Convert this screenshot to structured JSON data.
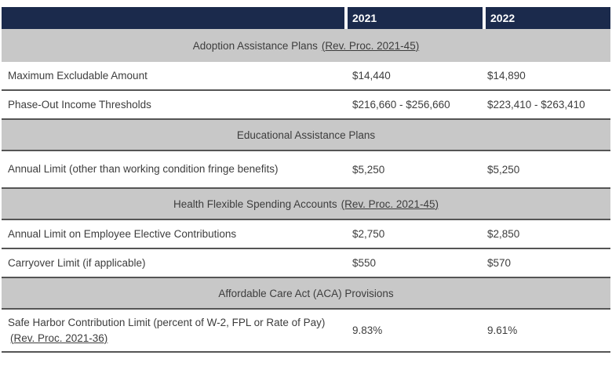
{
  "columns": {
    "y2021": "2021",
    "y2022": "2022"
  },
  "sections": [
    {
      "title": "Adoption Assistance Plans",
      "title_link": "(Rev. Proc. 2021-45)",
      "rows": [
        {
          "label": "Maximum Excludable Amount",
          "v2021": "$14,440",
          "v2022": "$14,890"
        },
        {
          "label": "Phase-Out Income Thresholds",
          "v2021": "$216,660 - $256,660",
          "v2022": "$223,410 - $263,410"
        }
      ]
    },
    {
      "title": "Educational Assistance Plans",
      "title_link": "",
      "rows": [
        {
          "label": "Annual Limit (other than working condition fringe benefits)",
          "v2021": "$5,250",
          "v2022": "$5,250"
        }
      ]
    },
    {
      "title": "Health Flexible Spending Accounts",
      "title_link": "(Rev. Proc. 2021-45)",
      "rows": [
        {
          "label": "Annual Limit on Employee Elective Contributions",
          "v2021": "$2,750",
          "v2022": "$2,850"
        },
        {
          "label": "Carryover Limit (if applicable)",
          "v2021": "$550",
          "v2022": "$570"
        }
      ]
    },
    {
      "title": "Affordable Care Act (ACA) Provisions",
      "title_link": "",
      "rows": [
        {
          "label": "Safe Harbor Contribution Limit (percent of W-2, FPL or Rate of Pay)",
          "label_link": "(Rev. Proc. 2021-36)",
          "v2021": "9.83%",
          "v2022": "9.61%"
        }
      ]
    }
  ],
  "colors": {
    "header_bg": "#1b2a4c",
    "band_bg": "#c8c8c8",
    "divider": "#555555",
    "text": "#3d3d3d",
    "header_text": "#ffffff"
  }
}
